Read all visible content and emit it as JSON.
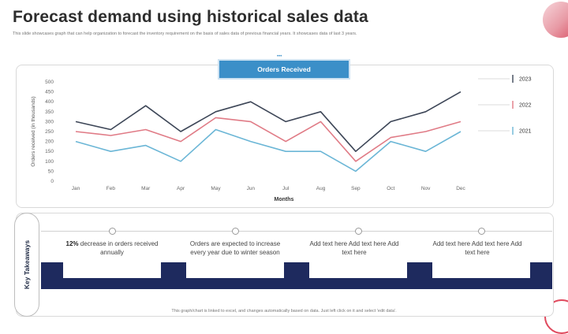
{
  "page": {
    "title": "Forecast demand using historical sales data",
    "subtitle": "This slide showcases graph that can help organization to forecast the inventory requirement on the basis of sales data of previous financial years. It showcases data of last 3 years.",
    "footer": "This graph/chart is linked to excel, and changes automatically based on data. Just left click on it and select 'edit data'."
  },
  "chart_header": "Orders Received",
  "chart_data": {
    "type": "line",
    "categories": [
      "Jan",
      "Feb",
      "Mar",
      "Apr",
      "May",
      "Jun",
      "Jul",
      "Aug",
      "Sep",
      "Oct",
      "Nov",
      "Dec"
    ],
    "series": [
      {
        "name": "2023",
        "color": "#3d4657",
        "values": [
          300,
          260,
          380,
          250,
          350,
          400,
          300,
          350,
          150,
          300,
          350,
          450
        ]
      },
      {
        "name": "2022",
        "color": "#e07b86",
        "values": [
          250,
          230,
          260,
          200,
          320,
          300,
          200,
          300,
          100,
          220,
          250,
          300
        ]
      },
      {
        "name": "2021",
        "color": "#6bb6d6",
        "values": [
          200,
          150,
          180,
          100,
          260,
          200,
          150,
          150,
          50,
          200,
          150,
          250
        ]
      }
    ],
    "ylim": [
      0,
      500
    ],
    "yticks": [
      0,
      50,
      100,
      150,
      200,
      250,
      300,
      350,
      400,
      450,
      500
    ],
    "xlabel": "Months",
    "ylabel": "Orders received (in thousands)",
    "grid": false,
    "legend": "right"
  },
  "takeaways": {
    "label": "Key Takeaways",
    "items": [
      {
        "highlight": "12%",
        "text": " decrease in orders received annually"
      },
      {
        "highlight": "",
        "text": "Orders are expected to increase every year due to winter season"
      },
      {
        "highlight": "",
        "text": "Add text here Add text here Add text here"
      },
      {
        "highlight": "",
        "text": "Add text here Add text here Add text here"
      }
    ]
  }
}
